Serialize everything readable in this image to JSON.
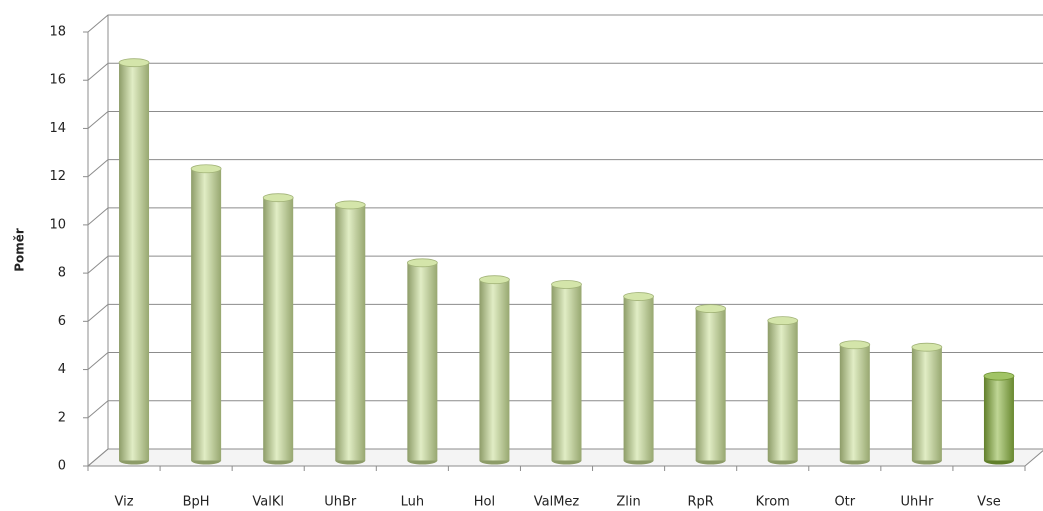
{
  "chart_data": {
    "type": "bar",
    "ylabel": "Poměr",
    "categories": [
      "Viz",
      "BpH",
      "ValKl",
      "UhBr",
      "Luh",
      "Hol",
      "ValMez",
      "Zlin",
      "RpR",
      "Krom",
      "Otr",
      "UhHr",
      "Vse"
    ],
    "values": [
      16.5,
      12.1,
      10.9,
      10.6,
      8.2,
      7.5,
      7.3,
      6.8,
      6.3,
      5.8,
      4.8,
      4.7,
      3.5
    ],
    "colors": [
      "#c9df95",
      "#c9df95",
      "#c9df95",
      "#c9df95",
      "#c9df95",
      "#c9df95",
      "#c9df95",
      "#c9df95",
      "#c9df95",
      "#c9df95",
      "#c9df95",
      "#c9df95",
      "#8ab53e"
    ],
    "ylim": [
      0,
      18
    ],
    "yticks": [
      0,
      2,
      4,
      6,
      8,
      10,
      12,
      14,
      16,
      18
    ],
    "grid": true
  }
}
